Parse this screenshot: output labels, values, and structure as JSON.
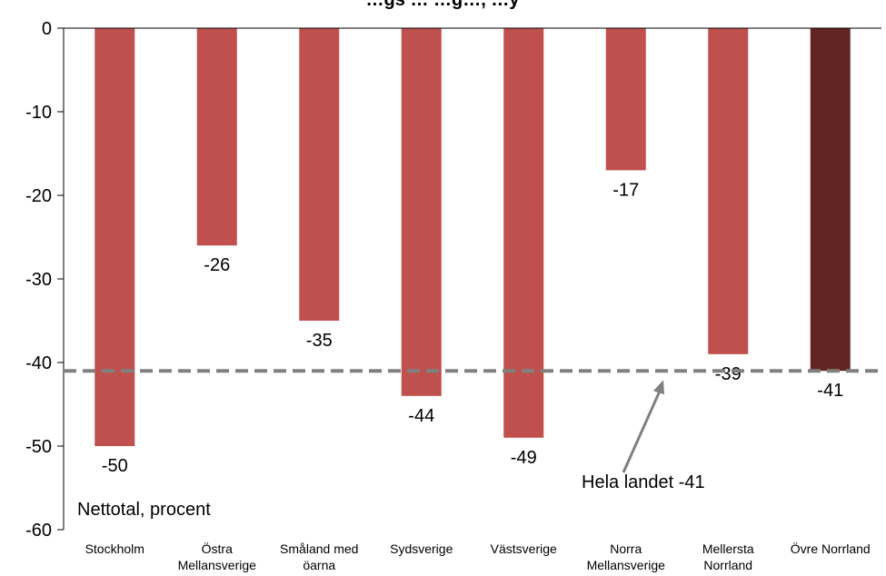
{
  "chart_data": {
    "type": "bar",
    "title_partial": "…gs … …g…, …y",
    "categories": [
      "Stockholm",
      "Östra Mellansverige",
      "Småland med öarna",
      "Sydsverige",
      "Västsverige",
      "Norra Mellansverige",
      "Mellersta Norrland",
      "Övre Norrland"
    ],
    "values": [
      -50,
      -26,
      -35,
      -44,
      -49,
      -17,
      -39,
      -41
    ],
    "data_labels": [
      "-50",
      "-26",
      "-35",
      "-44",
      "-49",
      "-17",
      "-39",
      "-41"
    ],
    "ylim": [
      -60,
      0
    ],
    "yticks": [
      0,
      -10,
      -20,
      -30,
      -40,
      -50,
      -60
    ],
    "ytick_labels": [
      "0",
      "-10",
      "-20",
      "-30",
      "-40",
      "-50",
      "-60"
    ],
    "ylabel_annotation": "Nettotal, procent",
    "reference_line": {
      "value": -41,
      "label": "Hela landet -41"
    },
    "grid": false,
    "colors": {
      "bar": "#c0504d",
      "highlight_bar": "#632523",
      "reference_line": "#808080",
      "arrow": "#808080",
      "axis": "#000000"
    },
    "highlight_index": 7
  }
}
